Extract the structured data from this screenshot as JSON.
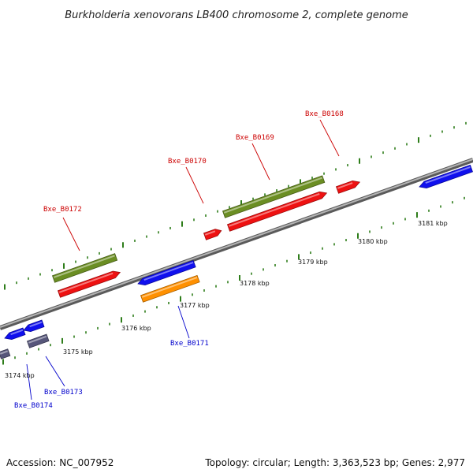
{
  "title": "Burkholderia xenovorans LB400 chromosome 2, complete genome",
  "footer": {
    "accession": "Accession: NC_007952",
    "summary": "Topology: circular; Length: 3,363,523 bp; Genes: 2,977"
  },
  "colors": {
    "backbone": "#8a8a8a",
    "tick": "#2e7d1a",
    "label_red": "#cc0000",
    "label_blue": "#0000cc",
    "red": "#ee1111",
    "green": "#6b8e23",
    "blue": "#1010ee",
    "orange": "#ff9000",
    "purple": "#56567a"
  },
  "kbp_labels": [
    "3174 kbp",
    "3175 kbp",
    "3176 kbp",
    "3177 kbp",
    "3178 kbp",
    "3179 kbp",
    "3180 kbp",
    "3181 kbp"
  ],
  "gene_labels": [
    "Bxe_B0168",
    "Bxe_B0169",
    "Bxe_B0170",
    "Bxe_B0172",
    "Bxe_B0171",
    "Bxe_B0173",
    "Bxe_B0174"
  ]
}
